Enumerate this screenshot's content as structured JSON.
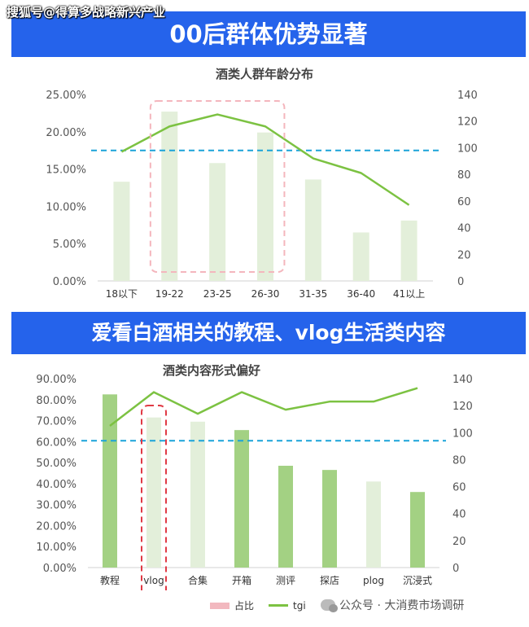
{
  "watermark": "搜狐号@得算多战略新兴产业",
  "banner1": "00后群体优势显著",
  "banner2": "爱看白酒相关的教程、vlog生活类内容",
  "legend": {
    "bar_label": "占比",
    "line_label": "tgi"
  },
  "source": "公众号 · 大消费市场调研",
  "colors": {
    "banner": "#2563eb",
    "bar_light": "#e3efda",
    "bar_dark": "#a3d183",
    "line": "#7cc242",
    "baseline": "#1aa3d9",
    "highlight": "#f4b6bd",
    "highlight2": "#e03a45"
  },
  "chart_data": [
    {
      "type": "bar",
      "title": "酒类人群年龄分布",
      "categories": [
        "18以下",
        "19-22",
        "23-25",
        "26-30",
        "31-35",
        "36-40",
        "41以上"
      ],
      "series": [
        {
          "name": "占比",
          "axis": "left",
          "values": [
            13.3,
            22.7,
            15.8,
            19.9,
            13.6,
            6.5,
            8.1
          ]
        },
        {
          "name": "tgi",
          "type": "line",
          "axis": "right",
          "values": [
            97,
            116,
            125,
            116,
            92,
            81,
            57
          ]
        }
      ],
      "y_left": {
        "min": 0,
        "max": 25,
        "step": 5,
        "ticks": [
          "0.00%",
          "5.00%",
          "10.00%",
          "15.00%",
          "20.00%",
          "25.00%"
        ]
      },
      "y_right": {
        "min": 0,
        "max": 140,
        "step": 20,
        "ticks": [
          "0",
          "20",
          "40",
          "60",
          "80",
          "100",
          "120",
          "140"
        ]
      },
      "reference_line_right": 98,
      "highlight_categories": [
        "19-22",
        "23-25",
        "26-30"
      ]
    },
    {
      "type": "bar",
      "title": "酒类内容形式偏好",
      "categories": [
        "教程",
        "vlog",
        "合集",
        "开箱",
        "测评",
        "探店",
        "plog",
        "沉浸式"
      ],
      "series": [
        {
          "name": "占比",
          "axis": "left",
          "values": [
            82.5,
            71.5,
            69.5,
            65.5,
            48.5,
            46.5,
            41,
            36
          ],
          "shade": [
            "dark",
            "light",
            "light",
            "dark",
            "dark",
            "dark",
            "light",
            "dark"
          ]
        },
        {
          "name": "tgi",
          "type": "line",
          "axis": "right",
          "values": [
            105,
            130,
            114,
            130,
            117,
            123,
            123,
            133
          ]
        }
      ],
      "y_left": {
        "min": 0,
        "max": 90,
        "step": 10,
        "ticks": [
          "0.00%",
          "10.00%",
          "20.00%",
          "30.00%",
          "40.00%",
          "50.00%",
          "60.00%",
          "70.00%",
          "80.00%",
          "90.00%"
        ]
      },
      "y_right": {
        "min": 0,
        "max": 140,
        "step": 20,
        "ticks": [
          "0",
          "20",
          "40",
          "60",
          "80",
          "100",
          "120",
          "140"
        ]
      },
      "reference_line_right": 94,
      "highlight_categories": [
        "vlog"
      ]
    }
  ]
}
